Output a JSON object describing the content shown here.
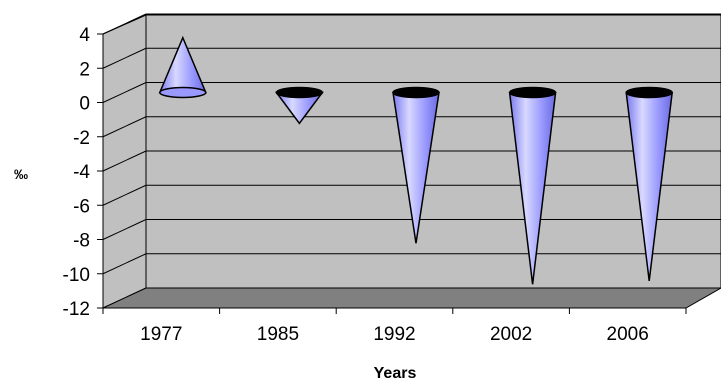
{
  "chart_data": {
    "type": "bar",
    "subtype": "3d-cone",
    "categories": [
      "1977",
      "1985",
      "1992",
      "2002",
      "2006"
    ],
    "values": [
      3.2,
      -1.8,
      -8.8,
      -11.2,
      -11.0
    ],
    "xlabel": "Years",
    "ylabel": "‰",
    "ylim": [
      -12,
      4
    ],
    "ytick_step": 2,
    "yticks": [
      "4",
      "2",
      "0",
      "-2",
      "-4",
      "-6",
      "-8",
      "-10",
      "-12"
    ],
    "grid": true,
    "legend": "none",
    "colors": {
      "cone": "#9999ff",
      "cone_dark": "#6f6fe6",
      "cone_light": "#d6d6ff",
      "wall": "#c0c0c0",
      "floor": "#808080",
      "cap": "#000000"
    }
  }
}
